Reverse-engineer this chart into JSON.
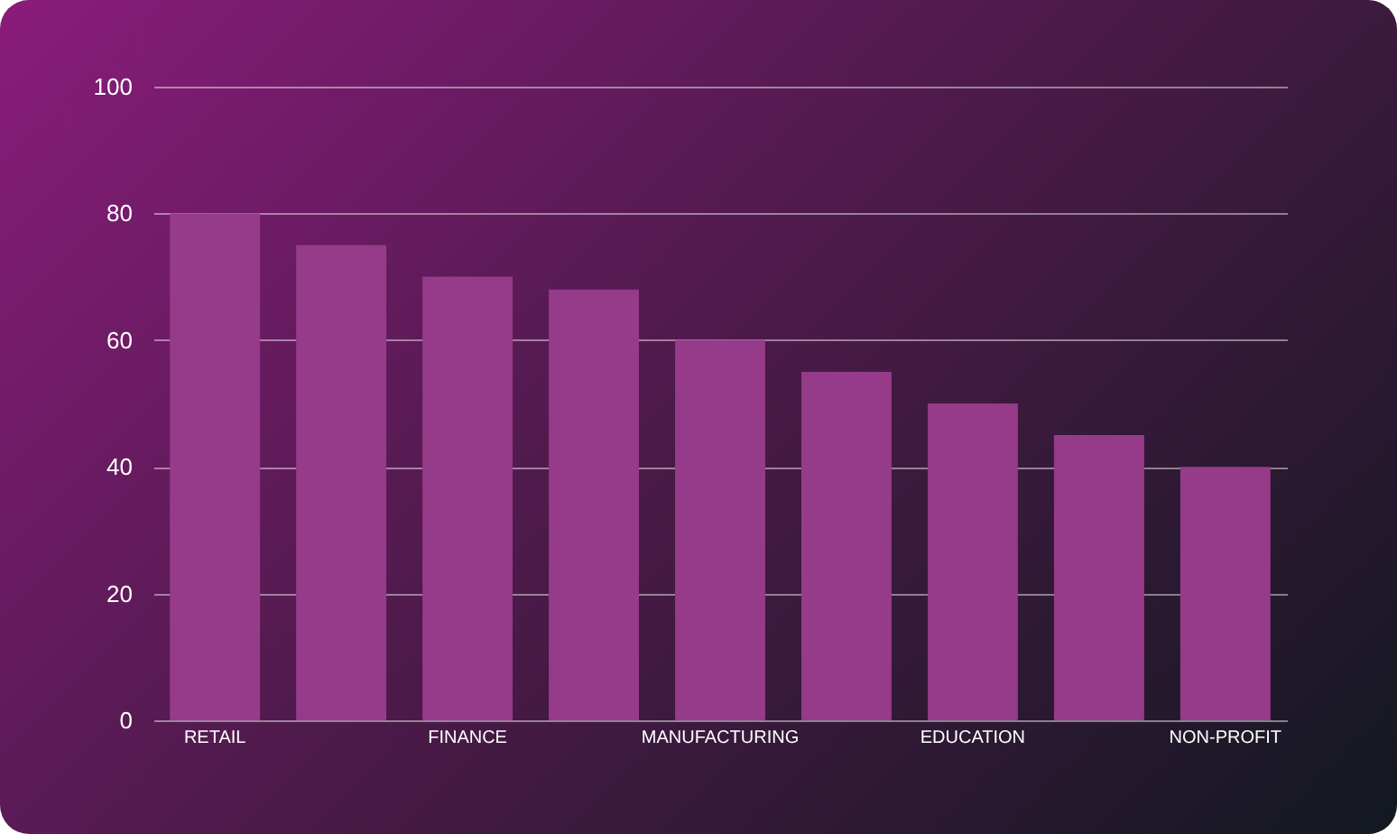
{
  "chart_data": {
    "type": "bar",
    "categories": [
      "RETAIL",
      null,
      "FINANCE",
      null,
      "MANUFACTURING",
      null,
      "EDUCATION",
      null,
      "NON-PROFIT"
    ],
    "values": [
      80,
      75,
      70,
      68,
      60,
      55,
      50,
      45,
      40
    ],
    "color": "#963a8a",
    "ylim": [
      0,
      100
    ],
    "yticks": [
      0,
      20,
      40,
      60,
      80,
      100
    ],
    "grid": "y"
  }
}
